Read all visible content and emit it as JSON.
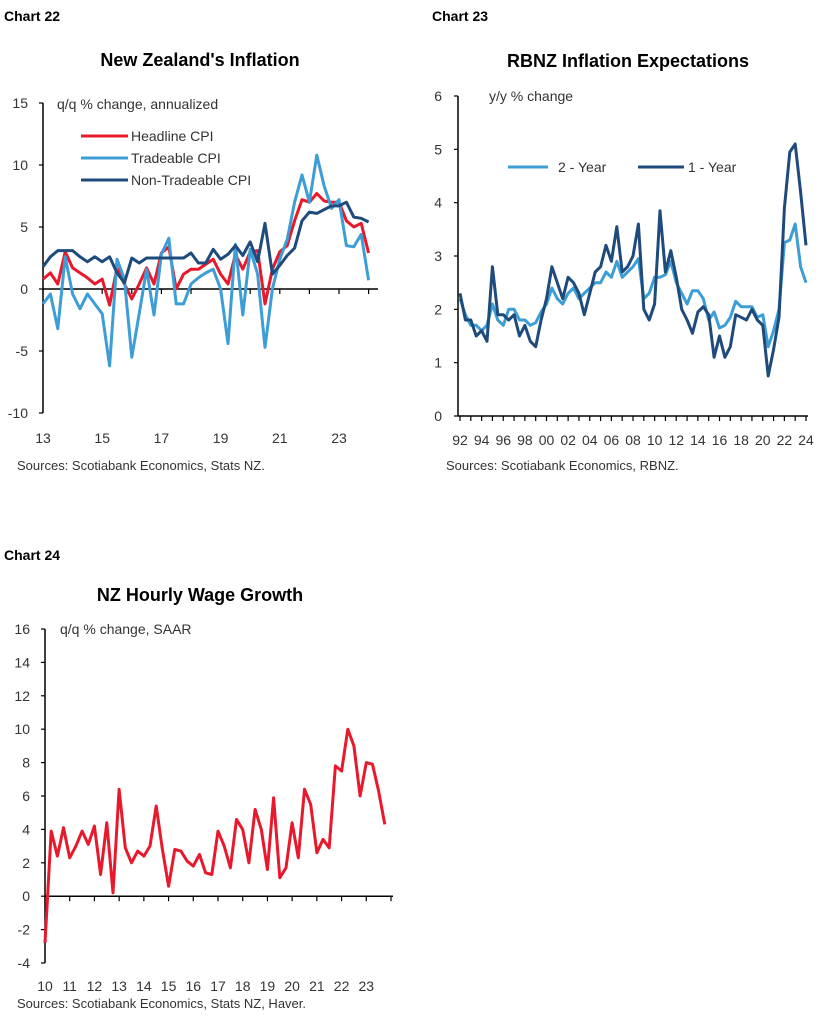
{
  "chart_data": [
    {
      "id": "chart22",
      "chart_number": "Chart 22",
      "type": "line",
      "title": "New Zealand's Inflation",
      "ylabel": "q/q % change, annualized",
      "source": "Sources: Scotiabank Economics, Stats NZ.",
      "x_start": 2013,
      "x_step": 0.25,
      "xlim": [
        2013,
        2024.25
      ],
      "ylim": [
        -10,
        15
      ],
      "yticks": [
        -10,
        -5,
        0,
        5,
        10,
        15
      ],
      "xticks": [
        {
          "v": 2013,
          "label": "13"
        },
        {
          "v": 2015,
          "label": "15"
        },
        {
          "v": 2017,
          "label": "17"
        },
        {
          "v": 2019,
          "label": "19"
        },
        {
          "v": 2021,
          "label": "21"
        },
        {
          "v": 2023,
          "label": "23"
        }
      ],
      "legend": "top-left",
      "series": [
        {
          "name": "Headline CPI",
          "color": "#e8192c",
          "values": [
            0.8,
            1.3,
            0.4,
            3.0,
            1.7,
            1.3,
            0.9,
            0.4,
            0.8,
            -1.3,
            1.7,
            0.4,
            -0.8,
            0.4,
            1.7,
            0.4,
            2.9,
            3.4,
            0,
            1.2,
            1.6,
            1.6,
            2.0,
            2.4,
            1.2,
            0.4,
            2.8,
            1.6,
            3.0,
            3.1,
            -1.2,
            1.6,
            3.0,
            3.5,
            5.5,
            7.2,
            7.0,
            7.7,
            7.1,
            7.0,
            7.0,
            5.5,
            5.0,
            5.3,
            2.9
          ]
        },
        {
          "name": "Tradeable CPI",
          "color": "#3d9dd6",
          "values": [
            -1.2,
            -0.4,
            -3.2,
            2.6,
            -0.4,
            -1.6,
            -0.4,
            -1.2,
            -2.0,
            -6.2,
            2.4,
            0.8,
            -5.5,
            -2.0,
            1.6,
            -2.1,
            2.8,
            4.1,
            -1.2,
            -1.2,
            0.4,
            0.9,
            1.3,
            1.6,
            0,
            -4.4,
            3.6,
            -2.1,
            3.2,
            1.2,
            -4.7,
            0,
            2.4,
            4.0,
            7.0,
            9.2,
            7.0,
            10.8,
            8.3,
            6.5,
            7.2,
            3.5,
            3.4,
            4.4,
            0.7
          ]
        },
        {
          "name": "Non-Tradeable CPI",
          "color": "#1f4a7c",
          "values": [
            1.8,
            2.6,
            3.1,
            3.1,
            3.1,
            2.6,
            2.2,
            2.6,
            2.2,
            2.6,
            1.3,
            0.5,
            2.5,
            2.1,
            2.5,
            2.5,
            2.5,
            2.5,
            2.5,
            2.5,
            2.9,
            2.1,
            2.1,
            3.2,
            2.4,
            2.8,
            3.5,
            2.7,
            3.8,
            2.2,
            5.3,
            1.2,
            1.9,
            2.7,
            3.3,
            5.5,
            6.2,
            6.1,
            6.4,
            6.7,
            6.7,
            7.0,
            5.8,
            5.7,
            5.4
          ]
        }
      ]
    },
    {
      "id": "chart23",
      "chart_number": "Chart 23",
      "type": "line",
      "title": "RBNZ Inflation Expectations",
      "ylabel": "y/y % change",
      "source": "Sources: Scotiabank Economics, RBNZ.",
      "x_start": 1992,
      "x_step": 0.5,
      "xlim": [
        1992,
        2024
      ],
      "ylim": [
        0,
        6
      ],
      "yticks": [
        0,
        1,
        2,
        3,
        4,
        5,
        6
      ],
      "xticks": [
        {
          "v": 1992,
          "label": "92"
        },
        {
          "v": 1994,
          "label": "94"
        },
        {
          "v": 1996,
          "label": "96"
        },
        {
          "v": 1998,
          "label": "98"
        },
        {
          "v": 2000,
          "label": "00"
        },
        {
          "v": 2002,
          "label": "02"
        },
        {
          "v": 2004,
          "label": "04"
        },
        {
          "v": 2006,
          "label": "06"
        },
        {
          "v": 2008,
          "label": "08"
        },
        {
          "v": 2010,
          "label": "10"
        },
        {
          "v": 2012,
          "label": "12"
        },
        {
          "v": 2014,
          "label": "14"
        },
        {
          "v": 2016,
          "label": "16"
        },
        {
          "v": 2018,
          "label": "18"
        },
        {
          "v": 2020,
          "label": "20"
        },
        {
          "v": 2022,
          "label": "22"
        },
        {
          "v": 2024,
          "label": "24"
        }
      ],
      "legend": "top-center",
      "series": [
        {
          "name": "2 - Year",
          "color": "#3d9dd6",
          "values": [
            2.2,
            1.9,
            1.7,
            1.7,
            1.6,
            1.7,
            2.1,
            1.8,
            1.7,
            2.0,
            2.0,
            1.8,
            1.8,
            1.7,
            1.75,
            1.95,
            2.1,
            2.4,
            2.2,
            2.1,
            2.3,
            2.4,
            2.2,
            2.3,
            2.4,
            2.5,
            2.5,
            2.7,
            2.6,
            2.9,
            2.6,
            2.7,
            2.8,
            2.95,
            2.2,
            2.3,
            2.6,
            2.6,
            2.65,
            2.9,
            2.5,
            2.3,
            2.1,
            2.35,
            2.35,
            2.2,
            1.8,
            1.95,
            1.65,
            1.7,
            1.85,
            2.15,
            2.05,
            2.05,
            2.05,
            1.85,
            1.9,
            1.3,
            1.6,
            2.0,
            3.25,
            3.3,
            3.6,
            2.8,
            2.5
          ]
        },
        {
          "name": "1 - Year",
          "color": "#1f4a7c",
          "values": [
            2.3,
            1.8,
            1.8,
            1.5,
            1.6,
            1.4,
            2.8,
            1.9,
            1.9,
            1.8,
            1.9,
            1.5,
            1.7,
            1.4,
            1.3,
            1.8,
            2.2,
            2.8,
            2.5,
            2.2,
            2.6,
            2.5,
            2.3,
            1.9,
            2.3,
            2.7,
            2.8,
            3.2,
            2.9,
            3.55,
            2.7,
            2.8,
            3.0,
            3.6,
            2.0,
            1.8,
            2.1,
            3.85,
            2.7,
            3.1,
            2.6,
            2.0,
            1.8,
            1.55,
            1.95,
            2.05,
            1.9,
            1.1,
            1.5,
            1.1,
            1.3,
            1.9,
            1.85,
            1.8,
            2.0,
            1.8,
            1.7,
            0.75,
            1.25,
            1.85,
            3.9,
            4.95,
            5.1,
            4.2,
            3.2
          ]
        }
      ]
    },
    {
      "id": "chart24",
      "chart_number": "Chart 24",
      "type": "line",
      "title": "NZ Hourly Wage Growth",
      "ylabel": "q/q % change, SAAR",
      "source": "Sources: Scotiabank Economics, Stats NZ, Haver.",
      "x_start": 2010,
      "x_step": 0.25,
      "xlim": [
        2010,
        2024
      ],
      "ylim": [
        -4,
        16
      ],
      "yticks": [
        -4,
        -2,
        0,
        2,
        4,
        6,
        8,
        10,
        12,
        14,
        16
      ],
      "xticks": [
        {
          "v": 2010,
          "label": "10"
        },
        {
          "v": 2011,
          "label": "11"
        },
        {
          "v": 2012,
          "label": "12"
        },
        {
          "v": 2013,
          "label": "13"
        },
        {
          "v": 2014,
          "label": "14"
        },
        {
          "v": 2015,
          "label": "15"
        },
        {
          "v": 2016,
          "label": "16"
        },
        {
          "v": 2017,
          "label": "17"
        },
        {
          "v": 2018,
          "label": "18"
        },
        {
          "v": 2019,
          "label": "19"
        },
        {
          "v": 2020,
          "label": "20"
        },
        {
          "v": 2021,
          "label": "21"
        },
        {
          "v": 2022,
          "label": "22"
        },
        {
          "v": 2023,
          "label": "23"
        }
      ],
      "legend": "none",
      "series": [
        {
          "color": "#e8192c",
          "values": [
            -2.8,
            3.9,
            2.4,
            4.1,
            2.3,
            3.0,
            3.9,
            3.1,
            4.2,
            1.3,
            4.4,
            0.2,
            6.4,
            2.9,
            2.0,
            2.7,
            2.4,
            3.0,
            5.4,
            2.8,
            0.6,
            2.8,
            2.7,
            2.1,
            1.8,
            2.5,
            1.4,
            1.3,
            3.9,
            3.0,
            1.7,
            4.6,
            4.0,
            2.0,
            5.2,
            4.0,
            1.6,
            5.9,
            1.1,
            1.7,
            4.4,
            2.3,
            6.4,
            5.5,
            2.6,
            3.4,
            2.9,
            7.8,
            7.5,
            10.0,
            9.0,
            6.0,
            8.0,
            7.9,
            6.3,
            4.3
          ]
        }
      ]
    }
  ]
}
